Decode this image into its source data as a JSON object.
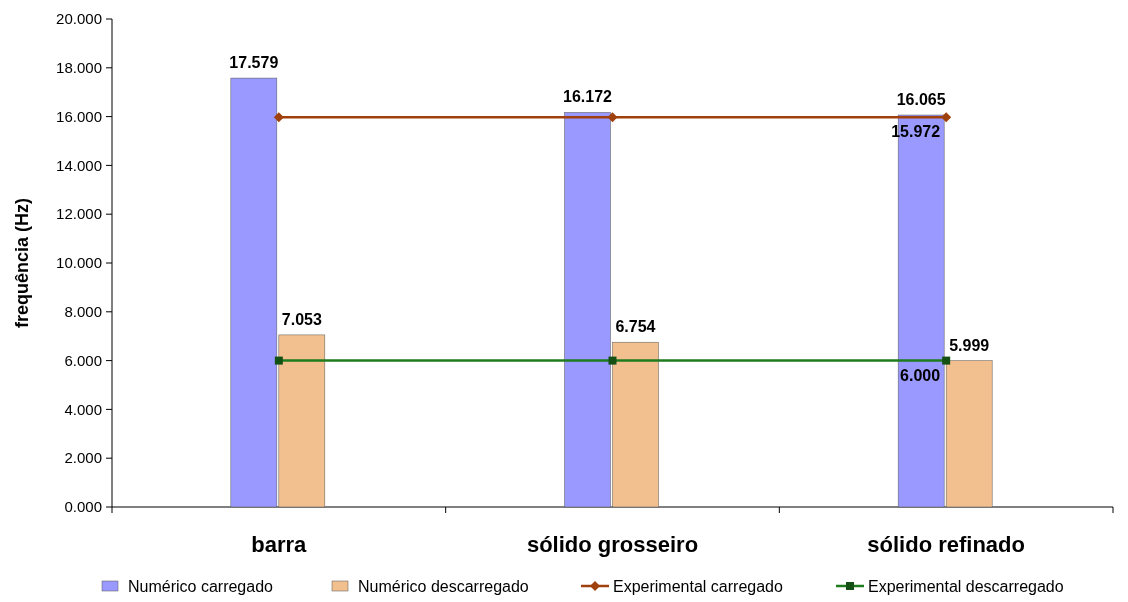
{
  "chart_data": {
    "type": "bar",
    "categories": [
      "barra",
      "sólido grosseiro",
      "sólido refinado"
    ],
    "ylabel": "frequência (Hz)",
    "ylim": [
      0,
      20
    ],
    "yticks": [
      {
        "value": 0,
        "label": "0.000"
      },
      {
        "value": 2,
        "label": "2.000"
      },
      {
        "value": 4,
        "label": "4.000"
      },
      {
        "value": 6,
        "label": "6.000"
      },
      {
        "value": 8,
        "label": "8.000"
      },
      {
        "value": 10,
        "label": "10.000"
      },
      {
        "value": 12,
        "label": "12.000"
      },
      {
        "value": 14,
        "label": "14.000"
      },
      {
        "value": 16,
        "label": "16.000"
      },
      {
        "value": 18,
        "label": "18.000"
      },
      {
        "value": 20,
        "label": "20.000"
      }
    ],
    "series": [
      {
        "name": "Numérico carregado",
        "color": "#9999ff",
        "values": [
          17.579,
          16.172,
          16.065
        ],
        "value_labels": [
          "17.579",
          "16.172",
          "16.065"
        ]
      },
      {
        "name": "Numérico descarregado",
        "color": "#f2c08e",
        "values": [
          7.053,
          6.754,
          5.999
        ],
        "value_labels": [
          "7.053",
          "6.754",
          "5.999"
        ]
      },
      {
        "name": "Experimental carregado",
        "type": "line",
        "marker": "diamond",
        "color": "#a0410d",
        "values": [
          15.972,
          15.972,
          15.972
        ],
        "value_labels": [
          null,
          null,
          "15.972"
        ]
      },
      {
        "name": "Experimental descarregado",
        "type": "line",
        "marker": "square",
        "color": "#1e7b1e",
        "values": [
          6.0,
          6.0,
          6.0
        ],
        "value_labels": [
          null,
          null,
          "6.000"
        ]
      }
    ],
    "legend": "bottom"
  }
}
